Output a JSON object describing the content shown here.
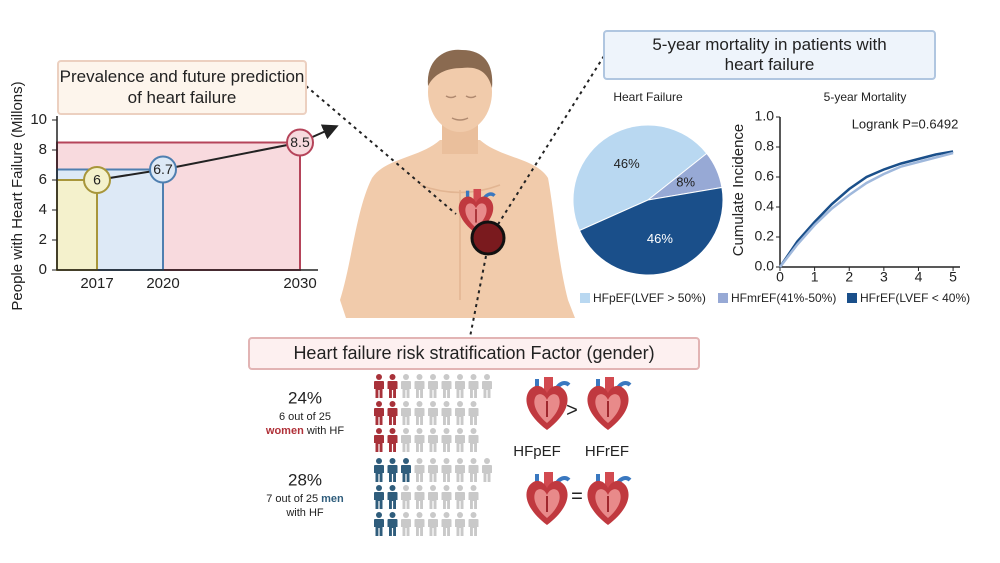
{
  "chart_data": [
    {
      "type": "bar",
      "title": "Prevalence and future prediction of heart failure",
      "y_label": "People with Heart Failure (Millons)",
      "categories": [
        "2017",
        "2020",
        "2030"
      ],
      "values": [
        6,
        6.7,
        8.5
      ],
      "colors": [
        "#f4f1cc",
        "#dde9f6",
        "#f8dade"
      ],
      "edge_colors": [
        "#a8963a",
        "#4f7fb0",
        "#b5445a"
      ],
      "ylim": [
        0,
        10
      ],
      "yticks": [
        0,
        2,
        4,
        6,
        8,
        10
      ]
    },
    {
      "type": "pie",
      "title": "Heart Failure",
      "categories": [
        "HFpEF(LVEF > 50%)",
        "HFmrEF(41%-50%)",
        "HFrEF(LVEF < 40%)"
      ],
      "values": [
        46,
        8,
        46
      ],
      "value_labels": [
        "46%",
        "8%",
        "46%"
      ],
      "colors": [
        "#b9d8f1",
        "#97a9d5",
        "#1a4f8a"
      ],
      "legend": "bottom"
    },
    {
      "type": "line",
      "title": "5-year Mortality",
      "y_label": "Cumulate Incidence",
      "annotation": "Logrank P=0.6492",
      "x": [
        0,
        0.5,
        1,
        1.5,
        2,
        2.5,
        3,
        3.5,
        4,
        4.5,
        5
      ],
      "series": [
        {
          "color": "#1a4f8a",
          "values": [
            0,
            0.17,
            0.3,
            0.42,
            0.52,
            0.6,
            0.65,
            0.69,
            0.72,
            0.75,
            0.77
          ]
        },
        {
          "color": "#9fb8dc",
          "values": [
            0,
            0.15,
            0.28,
            0.39,
            0.48,
            0.56,
            0.62,
            0.67,
            0.7,
            0.73,
            0.76
          ]
        }
      ],
      "xlim": [
        0,
        5.2
      ],
      "xticks": [
        0,
        1,
        2,
        3,
        4,
        5
      ],
      "ylim": [
        0,
        1
      ],
      "yticks": [
        {
          "value": 0,
          "label": "0.0"
        },
        0.2,
        0.4,
        0.6,
        0.8,
        {
          "value": 1,
          "label": "1.0"
        }
      ]
    }
  ],
  "panels": {
    "mortality_title": "5-year mortality in patients with heart failure",
    "risk_title": "Heart failure risk stratification Factor (gender)",
    "women": {
      "percent": "24%",
      "count": 6,
      "of": "out of",
      "total": 25,
      "group": "women",
      "suffix": "with HF",
      "color": "#a8323a"
    },
    "men": {
      "percent": "28%",
      "count": 7,
      "of": "out of",
      "total": 25,
      "group": "men",
      "suffix": "with HF",
      "color": "#2f5d7c"
    },
    "comparison": {
      "labels": [
        "HFpEF",
        "HFrEF"
      ],
      "women_symbol": ">",
      "men_symbol": "="
    }
  }
}
